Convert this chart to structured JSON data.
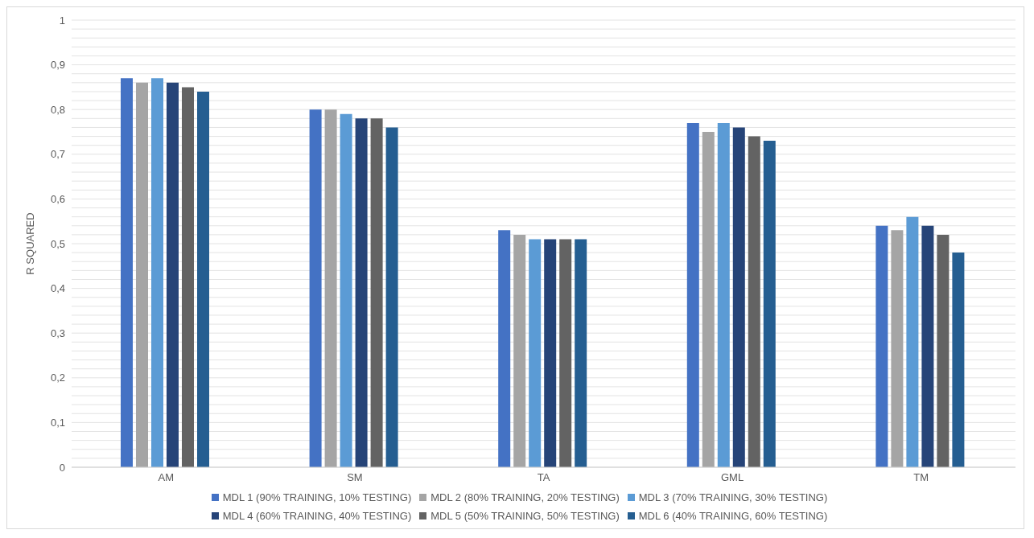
{
  "chart_data": {
    "type": "bar",
    "ylabel": "R SQUARED",
    "categories": [
      "AM",
      "SM",
      "TA",
      "GML",
      "TM"
    ],
    "series": [
      {
        "name": "MDL 1 (90% TRAINING, 10% TESTING)",
        "color": "#4472c4",
        "values": [
          0.87,
          0.8,
          0.53,
          0.77,
          0.54
        ]
      },
      {
        "name": "MDL 2 (80% TRAINING, 20% TESTING)",
        "color": "#a5a5a5",
        "values": [
          0.86,
          0.8,
          0.52,
          0.75,
          0.53
        ]
      },
      {
        "name": "MDL 3 (70% TRAINING, 30% TESTING)",
        "color": "#5b9bd5",
        "values": [
          0.87,
          0.79,
          0.51,
          0.77,
          0.56
        ]
      },
      {
        "name": "MDL 4 (60% TRAINING, 40% TESTING)",
        "color": "#264478",
        "values": [
          0.86,
          0.78,
          0.51,
          0.76,
          0.54
        ]
      },
      {
        "name": "MDL 5 (50% TRAINING, 50% TESTING)",
        "color": "#636363",
        "values": [
          0.85,
          0.78,
          0.51,
          0.74,
          0.52
        ]
      },
      {
        "name": "MDL 6 (40% TRAINING, 60% TESTING)",
        "color": "#255e91",
        "values": [
          0.84,
          0.76,
          0.51,
          0.73,
          0.48
        ]
      }
    ],
    "ylim": [
      0,
      1
    ],
    "yticks": [
      {
        "value": 0,
        "label": "0"
      },
      {
        "value": 0.02,
        "label": null
      },
      {
        "value": 0.04,
        "label": null
      },
      {
        "value": 0.06,
        "label": null
      },
      {
        "value": 0.08,
        "label": null
      },
      {
        "value": 0.1,
        "label": "0,1"
      },
      {
        "value": 0.12,
        "label": null
      },
      {
        "value": 0.14,
        "label": null
      },
      {
        "value": 0.16,
        "label": null
      },
      {
        "value": 0.18,
        "label": null
      },
      {
        "value": 0.2,
        "label": "0,2"
      },
      {
        "value": 0.22,
        "label": null
      },
      {
        "value": 0.24,
        "label": null
      },
      {
        "value": 0.26,
        "label": null
      },
      {
        "value": 0.28,
        "label": null
      },
      {
        "value": 0.3,
        "label": "0,3"
      },
      {
        "value": 0.32,
        "label": null
      },
      {
        "value": 0.34,
        "label": null
      },
      {
        "value": 0.36,
        "label": null
      },
      {
        "value": 0.38,
        "label": null
      },
      {
        "value": 0.4,
        "label": "0,4"
      },
      {
        "value": 0.42,
        "label": null
      },
      {
        "value": 0.44,
        "label": null
      },
      {
        "value": 0.46,
        "label": null
      },
      {
        "value": 0.48,
        "label": null
      },
      {
        "value": 0.5,
        "label": "0,5"
      },
      {
        "value": 0.52,
        "label": null
      },
      {
        "value": 0.54,
        "label": null
      },
      {
        "value": 0.56,
        "label": null
      },
      {
        "value": 0.58,
        "label": null
      },
      {
        "value": 0.6,
        "label": "0,6"
      },
      {
        "value": 0.62,
        "label": null
      },
      {
        "value": 0.64,
        "label": null
      },
      {
        "value": 0.66,
        "label": null
      },
      {
        "value": 0.68,
        "label": null
      },
      {
        "value": 0.7,
        "label": "0,7"
      },
      {
        "value": 0.72,
        "label": null
      },
      {
        "value": 0.74,
        "label": null
      },
      {
        "value": 0.76,
        "label": null
      },
      {
        "value": 0.78,
        "label": null
      },
      {
        "value": 0.8,
        "label": "0,8"
      },
      {
        "value": 0.82,
        "label": null
      },
      {
        "value": 0.84,
        "label": null
      },
      {
        "value": 0.86,
        "label": null
      },
      {
        "value": 0.88,
        "label": null
      },
      {
        "value": 0.9,
        "label": "0,9"
      },
      {
        "value": 0.92,
        "label": null
      },
      {
        "value": 0.94,
        "label": null
      },
      {
        "value": 0.96,
        "label": null
      },
      {
        "value": 0.98,
        "label": null
      },
      {
        "value": 1,
        "label": "1"
      }
    ],
    "grid": "y",
    "legend": "bottom"
  }
}
